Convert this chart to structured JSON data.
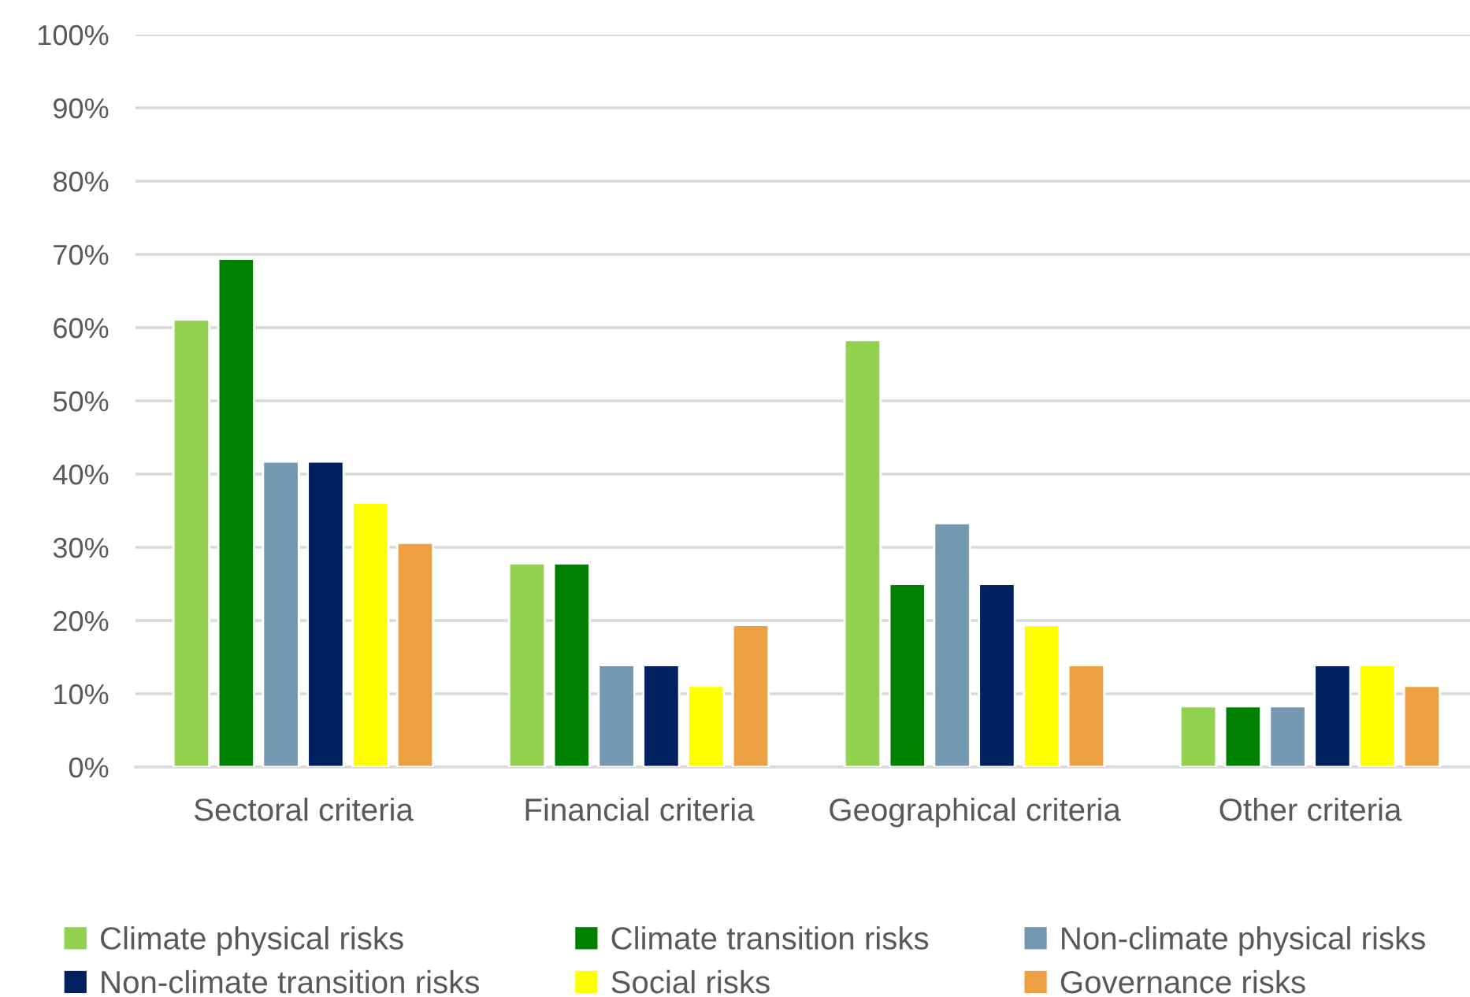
{
  "chart_data": {
    "type": "bar",
    "categories": [
      "Sectoral criteria",
      "Financial criteria",
      "Geographical criteria",
      "Other criteria"
    ],
    "series": [
      {
        "name": "Climate physical risks",
        "color": "#92d050",
        "values": [
          61.1,
          27.8,
          58.3,
          8.3
        ]
      },
      {
        "name": "Climate transition risks",
        "color": "#008000",
        "values": [
          69.4,
          27.8,
          25.0,
          8.3
        ]
      },
      {
        "name": "Non-climate physical risks",
        "color": "#7498af",
        "values": [
          41.7,
          13.9,
          33.3,
          8.3
        ]
      },
      {
        "name": "Non-climate transition risks",
        "color": "#002060",
        "values": [
          41.7,
          13.9,
          25.0,
          13.9
        ]
      },
      {
        "name": "Social risks",
        "color": "#ffff00",
        "values": [
          36.1,
          11.1,
          19.4,
          13.9
        ]
      },
      {
        "name": "Governance risks",
        "color": "#eda042",
        "values": [
          30.6,
          19.4,
          13.9,
          11.1
        ]
      }
    ],
    "ylim": [
      0,
      100
    ],
    "yticks": [
      {
        "value": 0,
        "label": "0%"
      },
      {
        "value": 10,
        "label": "10%"
      },
      {
        "value": 20,
        "label": "20%"
      },
      {
        "value": 30,
        "label": "30%"
      },
      {
        "value": 40,
        "label": "40%"
      },
      {
        "value": 50,
        "label": "50%"
      },
      {
        "value": 60,
        "label": "60%"
      },
      {
        "value": 70,
        "label": "70%"
      },
      {
        "value": 80,
        "label": "80%"
      },
      {
        "value": 90,
        "label": "90%"
      },
      {
        "value": 100,
        "label": "100%"
      }
    ],
    "grid": "y",
    "legend": "bottom"
  }
}
